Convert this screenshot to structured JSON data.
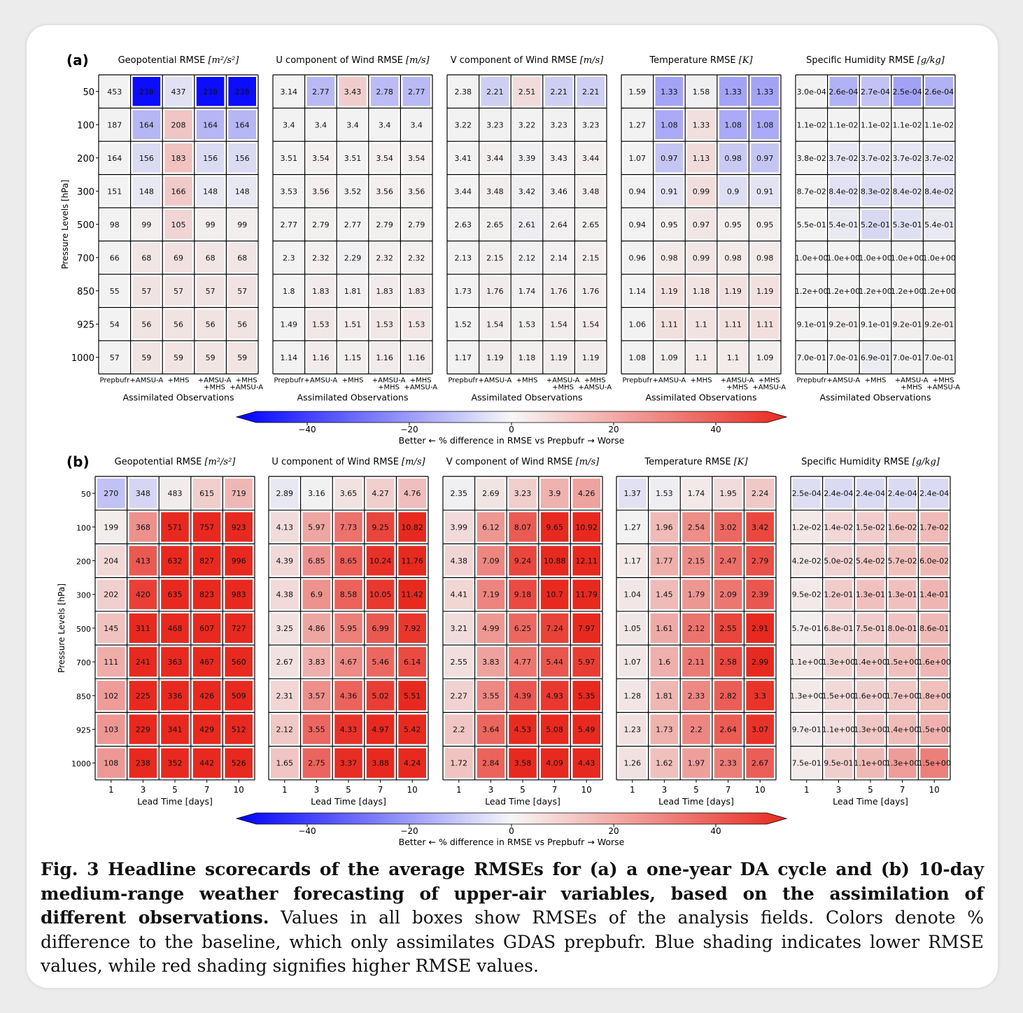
{
  "chart_data": [
    {
      "panel_label": "(a)",
      "type": "heatmap",
      "ylabel": "Pressure Levels [hPa]",
      "xlabel": "Assimilated Observations",
      "y_categories": [
        "50",
        "100",
        "200",
        "300",
        "500",
        "700",
        "850",
        "925",
        "1000"
      ],
      "x_categories": [
        "Prepbufr",
        "+AMSU-A",
        "+MHS",
        "+AMSU-A\n+MHS",
        "+MHS\n+AMSU-A"
      ],
      "subplots": [
        {
          "title": "Geopotential RMSE [m²/s²]",
          "values": [
            [
              "453",
              "238",
              "437",
              "238",
              "238"
            ],
            [
              "187",
              "164",
              "208",
              "164",
              "164"
            ],
            [
              "164",
              "156",
              "183",
              "156",
              "156"
            ],
            [
              "151",
              "148",
              "166",
              "148",
              "148"
            ],
            [
              "98",
              "99",
              "105",
              "99",
              "99"
            ],
            [
              "66",
              "68",
              "69",
              "68",
              "68"
            ],
            [
              "55",
              "57",
              "57",
              "57",
              "57"
            ],
            [
              "54",
              "56",
              "56",
              "56",
              "56"
            ],
            [
              "57",
              "59",
              "59",
              "59",
              "59"
            ]
          ]
        },
        {
          "title": "U component of Wind RMSE [m/s]",
          "values": [
            [
              "3.14",
              "2.77",
              "3.43",
              "2.78",
              "2.77"
            ],
            [
              "3.4",
              "3.4",
              "3.4",
              "3.4",
              "3.4"
            ],
            [
              "3.51",
              "3.54",
              "3.51",
              "3.54",
              "3.54"
            ],
            [
              "3.53",
              "3.56",
              "3.52",
              "3.56",
              "3.56"
            ],
            [
              "2.77",
              "2.79",
              "2.77",
              "2.79",
              "2.79"
            ],
            [
              "2.3",
              "2.32",
              "2.29",
              "2.32",
              "2.32"
            ],
            [
              "1.8",
              "1.83",
              "1.81",
              "1.83",
              "1.83"
            ],
            [
              "1.49",
              "1.53",
              "1.51",
              "1.53",
              "1.53"
            ],
            [
              "1.14",
              "1.16",
              "1.15",
              "1.16",
              "1.16"
            ]
          ]
        },
        {
          "title": "V component of Wind RMSE [m/s]",
          "values": [
            [
              "2.38",
              "2.21",
              "2.51",
              "2.21",
              "2.21"
            ],
            [
              "3.22",
              "3.23",
              "3.22",
              "3.23",
              "3.23"
            ],
            [
              "3.41",
              "3.44",
              "3.39",
              "3.43",
              "3.44"
            ],
            [
              "3.44",
              "3.48",
              "3.42",
              "3.46",
              "3.48"
            ],
            [
              "2.63",
              "2.65",
              "2.61",
              "2.64",
              "2.65"
            ],
            [
              "2.13",
              "2.15",
              "2.12",
              "2.14",
              "2.15"
            ],
            [
              "1.73",
              "1.76",
              "1.74",
              "1.76",
              "1.76"
            ],
            [
              "1.52",
              "1.54",
              "1.53",
              "1.54",
              "1.54"
            ],
            [
              "1.17",
              "1.19",
              "1.18",
              "1.19",
              "1.19"
            ]
          ]
        },
        {
          "title": "Temperature RMSE [K]",
          "values": [
            [
              "1.59",
              "1.33",
              "1.58",
              "1.33",
              "1.33"
            ],
            [
              "1.27",
              "1.08",
              "1.33",
              "1.08",
              "1.08"
            ],
            [
              "1.07",
              "0.97",
              "1.13",
              "0.98",
              "0.97"
            ],
            [
              "0.94",
              "0.91",
              "0.99",
              "0.9",
              "0.91"
            ],
            [
              "0.94",
              "0.95",
              "0.97",
              "0.95",
              "0.95"
            ],
            [
              "0.96",
              "0.98",
              "0.99",
              "0.98",
              "0.98"
            ],
            [
              "1.14",
              "1.19",
              "1.18",
              "1.19",
              "1.19"
            ],
            [
              "1.06",
              "1.11",
              "1.1",
              "1.11",
              "1.11"
            ],
            [
              "1.08",
              "1.09",
              "1.1",
              "1.1",
              "1.09"
            ]
          ]
        },
        {
          "title": "Specific Humidity RMSE [g/kg]",
          "values": [
            [
              "3.0e-04",
              "2.6e-04",
              "2.7e-04",
              "2.5e-04",
              "2.6e-04"
            ],
            [
              "1.1e-02",
              "1.1e-02",
              "1.1e-02",
              "1.1e-02",
              "1.1e-02"
            ],
            [
              "3.8e-02",
              "3.7e-02",
              "3.7e-02",
              "3.7e-02",
              "3.7e-02"
            ],
            [
              "8.7e-02",
              "8.4e-02",
              "8.3e-02",
              "8.4e-02",
              "8.4e-02"
            ],
            [
              "5.5e-01",
              "5.4e-01",
              "5.2e-01",
              "5.3e-01",
              "5.4e-01"
            ],
            [
              "1.0e+00",
              "1.0e+00",
              "1.0e+00",
              "1.0e+00",
              "1.0e+00"
            ],
            [
              "1.2e+00",
              "1.2e+00",
              "1.2e+00",
              "1.2e+00",
              "1.2e+00"
            ],
            [
              "9.1e-01",
              "9.2e-01",
              "9.1e-01",
              "9.2e-01",
              "9.2e-01"
            ],
            [
              "7.0e-01",
              "7.0e-01",
              "6.9e-01",
              "7.0e-01",
              "7.0e-01"
            ]
          ]
        }
      ],
      "colorbar": {
        "label": "Better ← % difference in RMSE vs Prepbufr → Worse",
        "ticks": [
          "−40",
          "−20",
          "0",
          "20",
          "40"
        ],
        "range": [
          -50,
          50
        ]
      }
    },
    {
      "panel_label": "(b)",
      "type": "heatmap",
      "ylabel": "Pressure Levels [hPa]",
      "xlabel": "Lead Time [days]",
      "y_categories": [
        "50",
        "100",
        "200",
        "300",
        "500",
        "700",
        "850",
        "925",
        "1000"
      ],
      "x_categories": [
        "1",
        "3",
        "5",
        "7",
        "10"
      ],
      "subplots": [
        {
          "title": "Geopotential RMSE [m²/s²]",
          "values": [
            [
              "270",
              "348",
              "483",
              "615",
              "719"
            ],
            [
              "199",
              "368",
              "571",
              "757",
              "923"
            ],
            [
              "204",
              "413",
              "632",
              "827",
              "996"
            ],
            [
              "202",
              "420",
              "635",
              "823",
              "983"
            ],
            [
              "145",
              "311",
              "468",
              "607",
              "727"
            ],
            [
              "111",
              "241",
              "363",
              "467",
              "560"
            ],
            [
              "102",
              "225",
              "336",
              "426",
              "509"
            ],
            [
              "103",
              "229",
              "341",
              "429",
              "512"
            ],
            [
              "108",
              "238",
              "352",
              "442",
              "526"
            ]
          ]
        },
        {
          "title": "U component of Wind RMSE [m/s]",
          "values": [
            [
              "2.89",
              "3.16",
              "3.65",
              "4.27",
              "4.76"
            ],
            [
              "4.13",
              "5.97",
              "7.73",
              "9.25",
              "10.82"
            ],
            [
              "4.39",
              "6.85",
              "8.65",
              "10.24",
              "11.76"
            ],
            [
              "4.38",
              "6.9",
              "8.58",
              "10.05",
              "11.42"
            ],
            [
              "3.25",
              "4.86",
              "5.95",
              "6.99",
              "7.92"
            ],
            [
              "2.67",
              "3.83",
              "4.67",
              "5.46",
              "6.14"
            ],
            [
              "2.31",
              "3.57",
              "4.36",
              "5.02",
              "5.51"
            ],
            [
              "2.12",
              "3.55",
              "4.33",
              "4.97",
              "5.42"
            ],
            [
              "1.65",
              "2.75",
              "3.37",
              "3.88",
              "4.24"
            ]
          ]
        },
        {
          "title": "V component of Wind RMSE [m/s]",
          "values": [
            [
              "2.35",
              "2.69",
              "3.23",
              "3.9",
              "4.26"
            ],
            [
              "3.99",
              "6.12",
              "8.07",
              "9.65",
              "10.92"
            ],
            [
              "4.38",
              "7.09",
              "9.24",
              "10.88",
              "12.11"
            ],
            [
              "4.41",
              "7.19",
              "9.18",
              "10.7",
              "11.79"
            ],
            [
              "3.21",
              "4.99",
              "6.25",
              "7.24",
              "7.97"
            ],
            [
              "2.55",
              "3.83",
              "4.77",
              "5.44",
              "5.97"
            ],
            [
              "2.27",
              "3.55",
              "4.39",
              "4.93",
              "5.35"
            ],
            [
              "2.2",
              "3.64",
              "4.53",
              "5.08",
              "5.49"
            ],
            [
              "1.72",
              "2.84",
              "3.58",
              "4.09",
              "4.43"
            ]
          ]
        },
        {
          "title": "Temperature RMSE [K]",
          "values": [
            [
              "1.37",
              "1.53",
              "1.74",
              "1.95",
              "2.24"
            ],
            [
              "1.27",
              "1.96",
              "2.54",
              "3.02",
              "3.42"
            ],
            [
              "1.17",
              "1.77",
              "2.15",
              "2.47",
              "2.79"
            ],
            [
              "1.04",
              "1.45",
              "1.79",
              "2.09",
              "2.39"
            ],
            [
              "1.05",
              "1.61",
              "2.12",
              "2.55",
              "2.91"
            ],
            [
              "1.07",
              "1.6",
              "2.11",
              "2.58",
              "2.99"
            ],
            [
              "1.28",
              "1.81",
              "2.33",
              "2.82",
              "3.3"
            ],
            [
              "1.23",
              "1.73",
              "2.2",
              "2.64",
              "3.07"
            ],
            [
              "1.26",
              "1.62",
              "1.97",
              "2.33",
              "2.67"
            ]
          ]
        },
        {
          "title": "Specific Humidity RMSE [g/kg]",
          "values": [
            [
              "2.5e-04",
              "2.4e-04",
              "2.4e-04",
              "2.4e-04",
              "2.4e-04"
            ],
            [
              "1.2e-02",
              "1.4e-02",
              "1.5e-02",
              "1.6e-02",
              "1.7e-02"
            ],
            [
              "4.2e-02",
              "5.0e-02",
              "5.4e-02",
              "5.7e-02",
              "6.0e-02"
            ],
            [
              "9.5e-02",
              "1.2e-01",
              "1.3e-01",
              "1.3e-01",
              "1.4e-01"
            ],
            [
              "5.7e-01",
              "6.8e-01",
              "7.5e-01",
              "8.0e-01",
              "8.6e-01"
            ],
            [
              "1.1e+00",
              "1.3e+00",
              "1.4e+00",
              "1.5e+00",
              "1.6e+00"
            ],
            [
              "1.3e+00",
              "1.5e+00",
              "1.6e+00",
              "1.7e+00",
              "1.8e+00"
            ],
            [
              "9.7e-01",
              "1.1e+00",
              "1.3e+00",
              "1.4e+00",
              "1.5e+00"
            ],
            [
              "7.5e-01",
              "9.5e-01",
              "1.1e+00",
              "1.3e+00",
              "1.5e+00"
            ]
          ]
        }
      ],
      "colorbar": {
        "label": "Better ← % difference in RMSE vs Prepbufr → Worse",
        "ticks": [
          "−40",
          "−20",
          "0",
          "20",
          "40"
        ],
        "range": [
          -50,
          50
        ]
      }
    }
  ],
  "colors": {
    "negative": "#0000ff",
    "neutral": "#f2f2f2",
    "positive": "#e8291f"
  },
  "caption": {
    "bold": "Fig. 3  Headline scorecards of the average RMSEs for (a) a one-year DA cycle and (b) 10-day medium-range weather forecasting of upper-air variables, based on the assimilation of different observations.",
    "text": " Values in all boxes show RMSEs of the analysis fields. Colors denote % difference to the baseline, which only assimilates GDAS prepbufr. Blue shading indicates lower RMSE values, while red shading signifies higher RMSE values."
  }
}
